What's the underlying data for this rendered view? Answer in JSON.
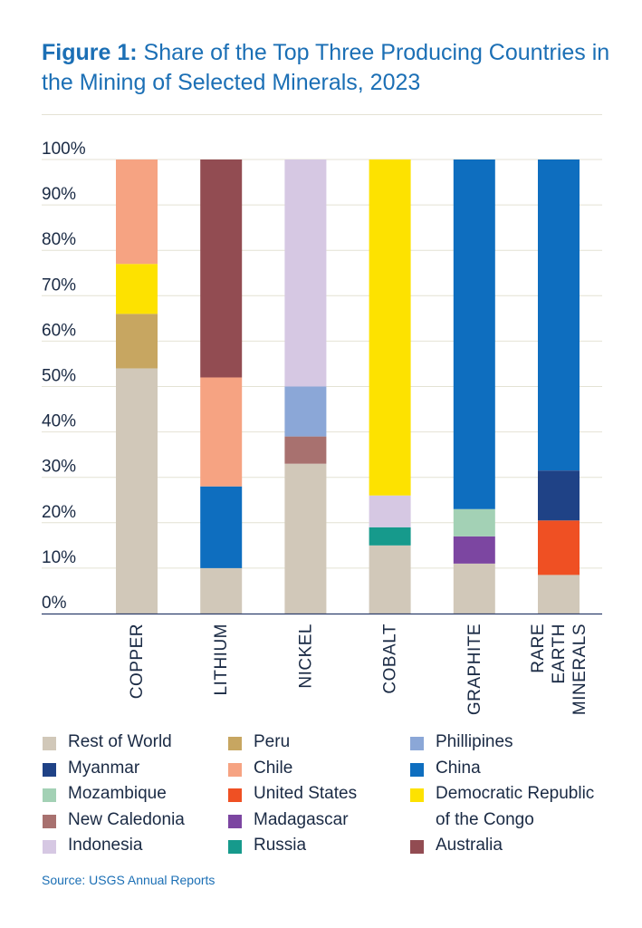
{
  "title": {
    "prefix": "Figure 1:",
    "text": " Share of the Top Three Producing Countries in the Mining of Selected Minerals, 2023"
  },
  "source": "Source: USGS Annual Reports",
  "chart_data": {
    "type": "bar",
    "stacked": true,
    "ylim": [
      0,
      100
    ],
    "yticks": [
      "0%",
      "10%",
      "20%",
      "30%",
      "40%",
      "50%",
      "60%",
      "70%",
      "80%",
      "90%",
      "100%"
    ],
    "grid": true,
    "legend_position": "bottom",
    "categories": [
      {
        "label": [
          "COPPER"
        ]
      },
      {
        "label": [
          "LITHIUM"
        ]
      },
      {
        "label": [
          "NICKEL"
        ]
      },
      {
        "label": [
          "COBALT"
        ]
      },
      {
        "label": [
          "GRAPHITE"
        ]
      },
      {
        "label": [
          "RARE",
          "EARTH",
          "MINERALS"
        ]
      }
    ],
    "colors": {
      "Rest of World": "#d1c8b9",
      "Peru": "#c7a661",
      "Phillipines": "#8ba7d7",
      "Myanmar": "#1f4286",
      "Chile": "#f6a382",
      "China": "#0e6ebf",
      "Mozambique": "#a3d1b5",
      "United States": "#ef5023",
      "Democratic Republic of the Congo": "#fde200",
      "New Caledonia": "#a8716f",
      "Madagascar": "#7c46a1",
      "Indonesia": "#d6c8e3",
      "Russia": "#169a8c",
      "Australia": "#924c52"
    },
    "stacks": [
      [
        [
          "Rest of World",
          54
        ],
        [
          "Peru",
          12
        ],
        [
          "Democratic Republic of the Congo",
          11
        ],
        [
          "Chile",
          23
        ]
      ],
      [
        [
          "Rest of World",
          10
        ],
        [
          "China",
          18
        ],
        [
          "Chile",
          24
        ],
        [
          "Australia",
          48
        ]
      ],
      [
        [
          "Rest of World",
          33
        ],
        [
          "New Caledonia",
          6
        ],
        [
          "Phillipines",
          11
        ],
        [
          "Indonesia",
          50
        ]
      ],
      [
        [
          "Rest of World",
          15
        ],
        [
          "Russia",
          4
        ],
        [
          "Indonesia",
          7
        ],
        [
          "Democratic Republic of the Congo",
          74
        ]
      ],
      [
        [
          "Rest of World",
          11
        ],
        [
          "Madagascar",
          6
        ],
        [
          "Mozambique",
          6
        ],
        [
          "China",
          77
        ]
      ],
      [
        [
          "Rest of World",
          8.5
        ],
        [
          "United States",
          12
        ],
        [
          "Myanmar",
          11
        ],
        [
          "China",
          68.5
        ]
      ]
    ]
  },
  "legend": [
    [
      {
        "name": "Rest of World",
        "color": "#d1c8b9",
        "lines": [
          "Rest of World"
        ]
      },
      {
        "name": "Myanmar",
        "color": "#1f4286",
        "lines": [
          "Myanmar"
        ]
      },
      {
        "name": "Mozambique",
        "color": "#a3d1b5",
        "lines": [
          "Mozambique"
        ]
      },
      {
        "name": "New Caledonia",
        "color": "#a8716f",
        "lines": [
          "New Caledonia"
        ]
      },
      {
        "name": "Indonesia",
        "color": "#d6c8e3",
        "lines": [
          "Indonesia"
        ]
      }
    ],
    [
      {
        "name": "Peru",
        "color": "#c7a661",
        "lines": [
          "Peru"
        ]
      },
      {
        "name": "Chile",
        "color": "#f6a382",
        "lines": [
          "Chile"
        ]
      },
      {
        "name": "United States",
        "color": "#ef5023",
        "lines": [
          "United States"
        ]
      },
      {
        "name": "Madagascar",
        "color": "#7c46a1",
        "lines": [
          "Madagascar"
        ]
      },
      {
        "name": "Russia",
        "color": "#169a8c",
        "lines": [
          "Russia"
        ]
      }
    ],
    [
      {
        "name": "Phillipines",
        "color": "#8ba7d7",
        "lines": [
          "Phillipines"
        ]
      },
      {
        "name": "China",
        "color": "#0e6ebf",
        "lines": [
          "China"
        ]
      },
      {
        "name": "Democratic Republic of the Congo",
        "color": "#fde200",
        "lines": [
          "Democratic Republic",
          "of the Congo"
        ]
      },
      {
        "name": "Australia",
        "color": "#924c52",
        "lines": [
          "Australia"
        ]
      }
    ]
  ]
}
